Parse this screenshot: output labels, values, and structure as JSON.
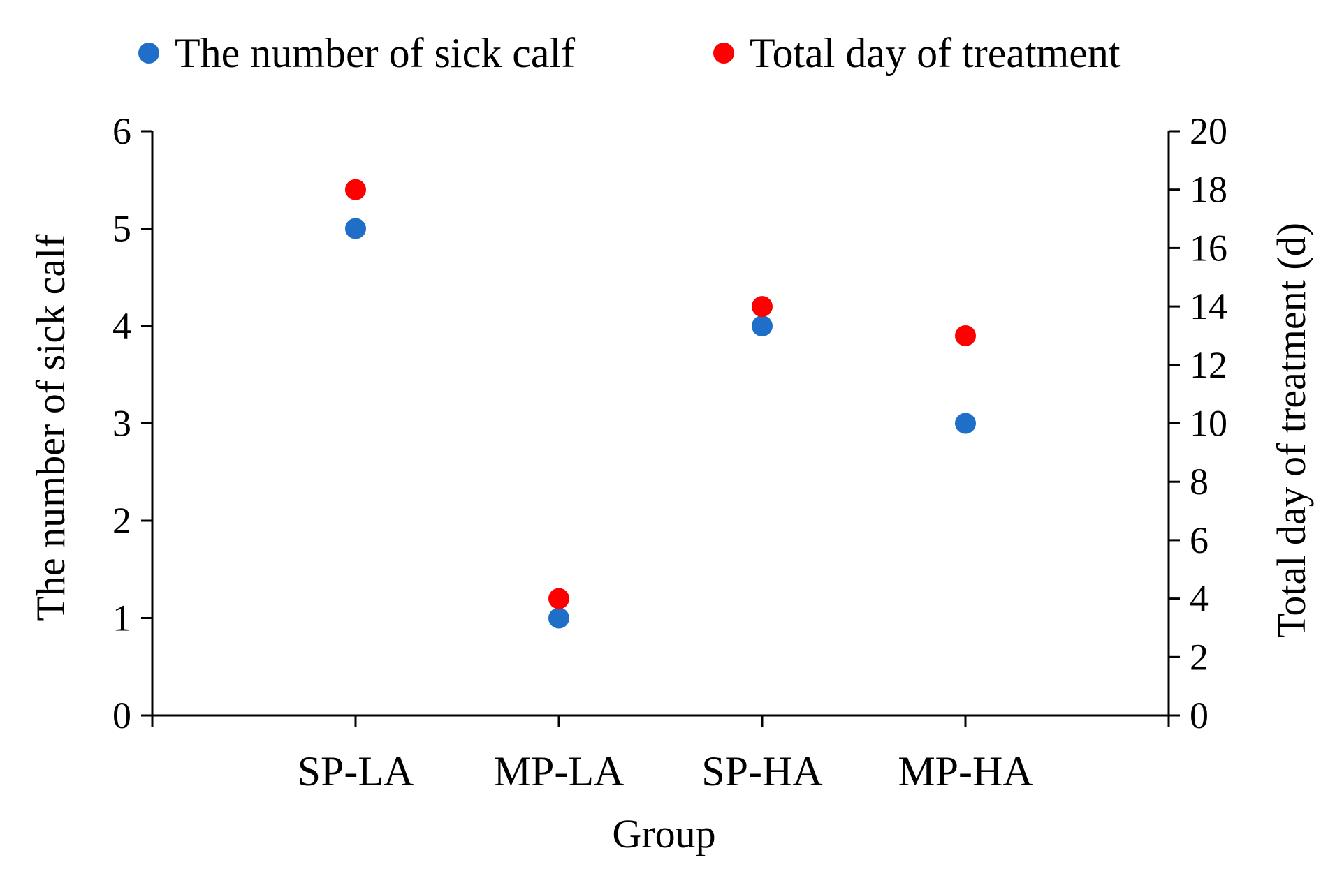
{
  "chart_data": {
    "type": "scatter",
    "title": "",
    "xlabel": "Group",
    "ylabel": "The number of sick calf",
    "y2label": "Total day of treatment (d)",
    "categories": [
      "SP-LA",
      "MP-LA",
      "SP-HA",
      "MP-HA"
    ],
    "ylim": [
      0,
      6
    ],
    "y2lim": [
      0,
      20
    ],
    "yticks": [
      0,
      1,
      2,
      3,
      4,
      5,
      6
    ],
    "y2ticks": [
      0,
      2,
      4,
      6,
      8,
      10,
      12,
      14,
      16,
      18,
      20
    ],
    "grid": false,
    "legend_position": "top",
    "series": [
      {
        "name": "The number of sick calf",
        "axis": "left",
        "color": "#1f6fc9",
        "values": [
          5,
          1,
          4,
          3
        ]
      },
      {
        "name": "Total day of treatment",
        "axis": "right",
        "color": "#ff0000",
        "values": [
          18,
          4,
          14,
          13
        ]
      }
    ]
  }
}
